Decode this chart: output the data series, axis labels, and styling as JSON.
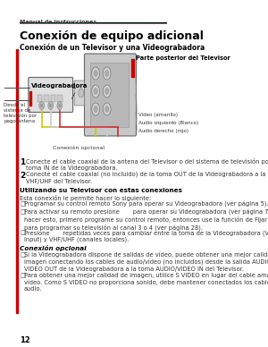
{
  "bg_color": "#ffffff",
  "page_num": "12",
  "header_text": "Manual de instrucciones",
  "left_bar_color": "#cc0000",
  "title": "Conexión de equipo adicional",
  "subtitle": "Conexión de un Televisor y una Videograbadora",
  "diagram_label_vcr": "Videograbadora",
  "diagram_label_tv": "Parte posterior del Televisor",
  "diagram_label_from": "Desde el\nsistema de\ntelevisión por\npago/antena",
  "diagram_label_optional": "Conexión opcional",
  "diagram_label_video": "Video (amarillo)",
  "diagram_label_audio_l": "Audio izquierdo (Blanco)",
  "diagram_label_audio_r": "Audio derecho (rojo)",
  "step1_num": "1",
  "step1_text": "Conecte el cable coaxial de la antena del Televisor o del sistema de televisión por pago a la\ntoma IN de la Videograbadora.",
  "step2_num": "2",
  "step2_text": "Conecte el cable coaxial (no incluido) de la toma OUT de la Videograbadora a la toma\nVHF/UHF del Televisor.",
  "section_using": "Utilizando su Televisor con estas conexiones",
  "using_intro": "Esta conexión le permite hacer lo siguiente:",
  "bullet1": "Programar su control remoto Sony para operar su Videograbadora (ver página 5).",
  "bullet2": "Para activar su remoto presione       para operar su Videograbadora (ver página 7). Para\nhacer esto, primero programe su control remoto, entonces use la función de Fijar Canal\npara programar su televisión al canal 3 o 4 (ver página 28).",
  "bullet3": "Presione       repetidas veces para cambiar entre la toma de la Videograbadora (VIDEO\ninput) y VHF/UHF (canales locales).",
  "section_optional": "Conexión opcional",
  "opt_bullet1": "Si la Videograbadora dispone de salidas de vídeo, puede obtener una mejor calidad de\nimagen conectando los cables de audio/vídeo (no incluidos) desde la salida AUDIO/\nVIDEO OUT de la Videograbadora a la toma AUDIO/VIDEO IN del Televisor.",
  "opt_bullet2": "Para obtener una mejor calidad de imagen, utilice S VIDEO en lugar del cable amarillo de\nvídeo. Como S VIDEO no proporciona sonido, debe mantener conectados los cables de\naudio.",
  "text_color": "#1a1a1a",
  "bold_color": "#000000",
  "red_color": "#cc0000"
}
